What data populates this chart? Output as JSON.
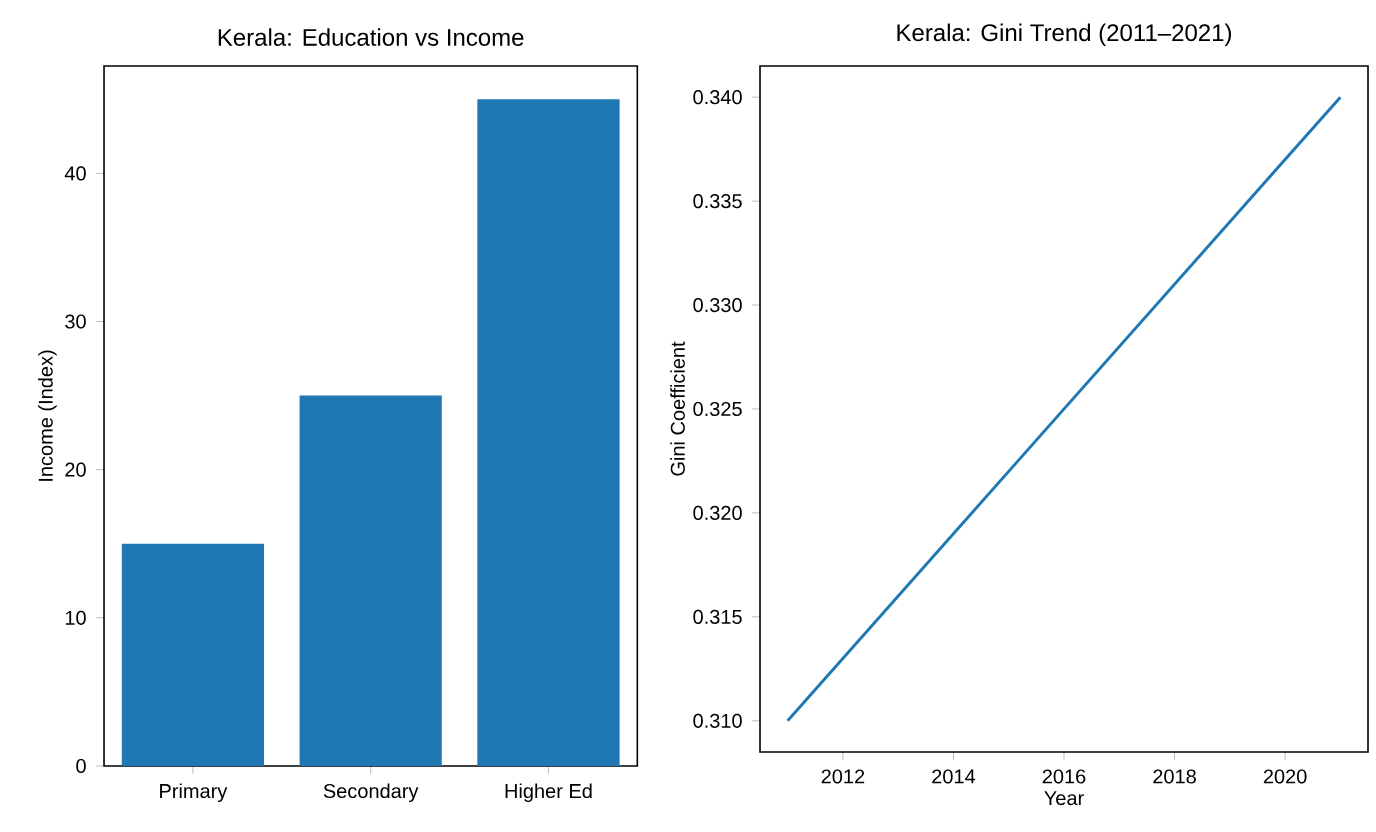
{
  "chart_data": [
    {
      "type": "bar",
      "title": "Kerala: Education vs Income",
      "ylabel": "Income (Index)",
      "categories": [
        "Primary",
        "Secondary",
        "Higher Ed"
      ],
      "values": [
        15,
        25,
        45
      ],
      "color": "#1f77b4",
      "ylim": [
        0,
        47.25
      ],
      "yticks": [
        0,
        10,
        20,
        30,
        40
      ]
    },
    {
      "type": "line",
      "title": "Kerala: Gini Trend (2011–2021)",
      "xlabel": "Year",
      "ylabel": "Gini Coefficient",
      "series": [
        {
          "color": "#1f77b4",
          "x": [
            2011,
            2021
          ],
          "values": [
            0.31,
            0.34
          ]
        }
      ],
      "xlim": [
        2010.5,
        2021.5
      ],
      "xticks": [
        2012,
        2014,
        2016,
        2018,
        2020
      ],
      "ylim": [
        0.3085,
        0.3415
      ],
      "yticks": [
        {
          "value": 0.31,
          "label": "0.310"
        },
        {
          "value": 0.315,
          "label": "0.315"
        },
        {
          "value": 0.32,
          "label": "0.320"
        },
        {
          "value": 0.325,
          "label": "0.325"
        },
        {
          "value": 0.33,
          "label": "0.330"
        },
        {
          "value": 0.335,
          "label": "0.335"
        },
        {
          "value": 0.34,
          "label": "0.340"
        }
      ]
    }
  ]
}
